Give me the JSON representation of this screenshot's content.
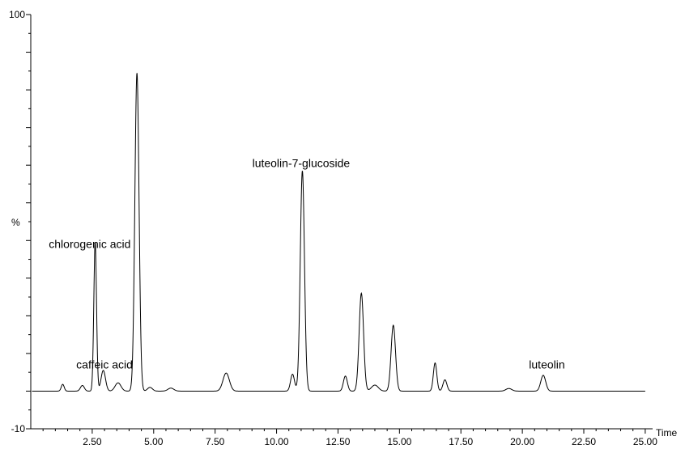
{
  "chart_data": {
    "type": "line",
    "title": "",
    "xlabel": "Time",
    "ylabel": "%",
    "xlim": [
      0,
      25.3
    ],
    "ylim": [
      -10,
      100
    ],
    "x_ticks": [
      2.5,
      5.0,
      7.5,
      10.0,
      12.5,
      15.0,
      17.5,
      20.0,
      22.5,
      25.0
    ],
    "x_tick_labels": [
      "2.50",
      "5.00",
      "7.50",
      "10.00",
      "12.50",
      "15.00",
      "17.50",
      "20.00",
      "22.50",
      "25.00"
    ],
    "y_tick_labels": [
      "100",
      "-10"
    ],
    "y_tick_values": [
      100,
      -10
    ],
    "grid": false,
    "baseline": 0,
    "series": [
      {
        "name": "",
        "peaks": [
          {
            "x": 1.3,
            "height": 1.8,
            "width": 0.06
          },
          {
            "x": 2.1,
            "height": 1.5,
            "width": 0.08
          },
          {
            "x": 2.62,
            "height": 39.5,
            "width": 0.055
          },
          {
            "x": 2.95,
            "height": 5.5,
            "width": 0.09
          },
          {
            "x": 3.55,
            "height": 2.2,
            "width": 0.12
          },
          {
            "x": 4.32,
            "height": 84.5,
            "width": 0.085
          },
          {
            "x": 4.85,
            "height": 1.0,
            "width": 0.1
          },
          {
            "x": 5.7,
            "height": 0.8,
            "width": 0.12
          },
          {
            "x": 7.95,
            "height": 4.8,
            "width": 0.13
          },
          {
            "x": 10.65,
            "height": 4.5,
            "width": 0.08
          },
          {
            "x": 11.05,
            "height": 58.5,
            "width": 0.085
          },
          {
            "x": 12.8,
            "height": 4.0,
            "width": 0.08
          },
          {
            "x": 13.45,
            "height": 26.0,
            "width": 0.09
          },
          {
            "x": 14.0,
            "height": 1.6,
            "width": 0.14
          },
          {
            "x": 14.75,
            "height": 17.5,
            "width": 0.09
          },
          {
            "x": 16.45,
            "height": 7.5,
            "width": 0.07
          },
          {
            "x": 16.85,
            "height": 3.0,
            "width": 0.08
          },
          {
            "x": 19.45,
            "height": 0.7,
            "width": 0.12
          },
          {
            "x": 20.85,
            "height": 4.2,
            "width": 0.1
          }
        ]
      }
    ],
    "annotations": [
      {
        "text": "chlorogenic acid",
        "x": 2.4,
        "y": 38
      },
      {
        "text": "caffeic acid",
        "x": 3.0,
        "y": 6
      },
      {
        "text": "luteolin-7-glucoside",
        "x": 11.0,
        "y": 59.5
      },
      {
        "text": "luteolin",
        "x": 21.0,
        "y": 6
      }
    ]
  }
}
